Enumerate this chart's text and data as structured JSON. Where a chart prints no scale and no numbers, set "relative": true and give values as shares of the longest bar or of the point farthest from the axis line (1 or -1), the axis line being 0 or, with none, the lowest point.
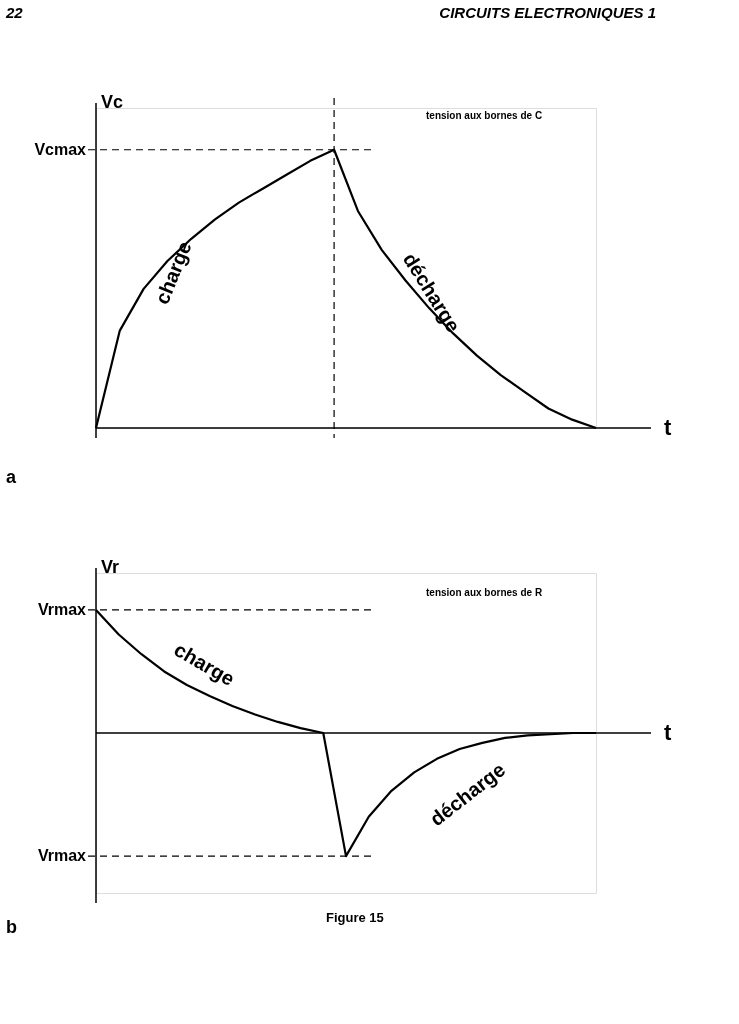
{
  "chart_data": [
    {
      "type": "line",
      "relative": true,
      "xlabel": "t",
      "ylabel": "Vc",
      "marker": "none",
      "line_style": "solid",
      "categories": [
        null,
        null,
        null,
        null,
        null,
        null,
        null,
        null,
        null,
        null,
        null,
        null,
        null,
        null,
        null,
        null,
        null,
        null,
        null,
        null,
        null,
        null
      ],
      "series": [
        {
          "color": "#000000",
          "values": [
            0,
            0.35,
            0.5,
            0.6,
            0.68,
            0.75,
            0.81,
            0.86,
            0.91,
            0.96,
            1,
            0.78,
            0.64,
            0.53,
            0.43,
            0.34,
            0.26,
            0.19,
            0.13,
            0.07,
            0.03,
            0
          ]
        }
      ],
      "ref_lines": [
        {
          "axis": "y",
          "value": 1,
          "label": "Vcmax",
          "line_style": "dashed",
          "color": "#000000"
        }
      ],
      "annotations": [
        "22",
        "CIRCUITS ELECTRONIQUES 1",
        "tension aux bornes de C",
        "a",
        "charge",
        "décharge"
      ]
    },
    {
      "type": "line",
      "relative": true,
      "xlabel": "t",
      "ylabel": "Vr",
      "marker": "none",
      "line_style": "solid",
      "categories": [
        null,
        null,
        null,
        null,
        null,
        null,
        null,
        null,
        null,
        null,
        null,
        null,
        null,
        null,
        null,
        null,
        null,
        null,
        null,
        null,
        null,
        null,
        null
      ],
      "series": [
        {
          "color": "#000000",
          "values": [
            1,
            0.8,
            0.64,
            0.5,
            0.39,
            0.3,
            0.22,
            0.15,
            0.09,
            0.04,
            0,
            -1,
            -0.68,
            -0.47,
            -0.32,
            -0.21,
            -0.13,
            -0.08,
            -0.04,
            -0.02,
            -0.01,
            0,
            0
          ]
        }
      ],
      "ref_lines": [
        {
          "axis": "y",
          "value": 1,
          "label": "Vrmax",
          "line_style": "dashed",
          "color": "#000000"
        },
        {
          "axis": "y",
          "value": -1,
          "label": "Vrmax",
          "line_style": "dashed",
          "color": "#000000"
        }
      ],
      "annotations": [
        "tension aux bornes de R",
        "b",
        "Figure 15",
        "charge",
        "décharge"
      ]
    }
  ]
}
